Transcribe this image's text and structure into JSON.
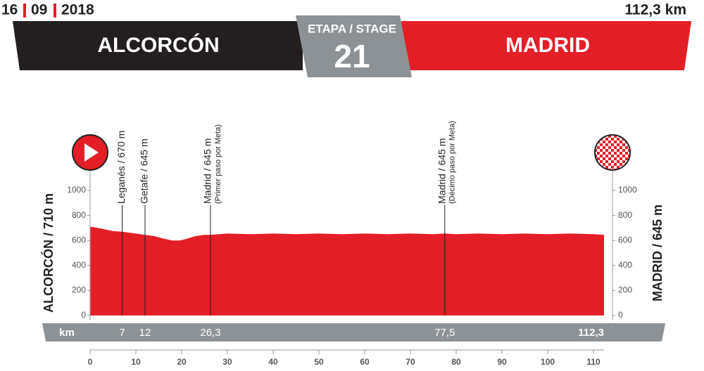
{
  "chart_data": {
    "type": "area",
    "date_parts": [
      "16",
      "09",
      "2018"
    ],
    "distance": "112,3 km",
    "start": "ALCORCÓN",
    "finish": "MADRID",
    "stage_label": "ETAPA / STAGE",
    "stage_number": "21",
    "start_side_label": "ALCORCÓN / 710 m",
    "finish_side_label": "MADRID / 645 m",
    "km_unit": "km",
    "km_marks": [
      7,
      12,
      {
        "value": 26.3,
        "label": "26,3"
      },
      {
        "value": 77.5,
        "label": "77,5"
      },
      {
        "value": 112.3,
        "label": "112,3"
      }
    ],
    "waypoints": [
      {
        "name": "Leganés / 670 m"
      },
      {
        "name": "Getafe / 645 m"
      },
      {
        "name": "Madrid / 645 m",
        "note": "(Primer paso por Meta)"
      },
      {
        "name": "Madrid / 645 m",
        "note": "(Décimo paso por Meta)"
      }
    ],
    "x": [
      0,
      1,
      3,
      5,
      7,
      9,
      12,
      14,
      16,
      18,
      19.5,
      21,
      23,
      25,
      26.3,
      30,
      35,
      40,
      45,
      50,
      55,
      60,
      65,
      70,
      75,
      77.5,
      80,
      85,
      90,
      95,
      100,
      105,
      110,
      112.3
    ],
    "values": [
      710,
      705,
      690,
      675,
      670,
      660,
      645,
      635,
      615,
      600,
      600,
      612,
      635,
      645,
      645,
      655,
      650,
      655,
      650,
      655,
      650,
      655,
      650,
      655,
      650,
      655,
      650,
      655,
      650,
      655,
      650,
      655,
      650,
      645
    ],
    "color": "#e41e26",
    "xlim": [
      0,
      112.3
    ],
    "xticks": [
      0,
      10,
      20,
      30,
      40,
      50,
      60,
      70,
      80,
      90,
      100,
      110
    ],
    "ylim": [
      0,
      1000
    ],
    "yticks": [
      0,
      200,
      400,
      600,
      800,
      1000
    ]
  }
}
